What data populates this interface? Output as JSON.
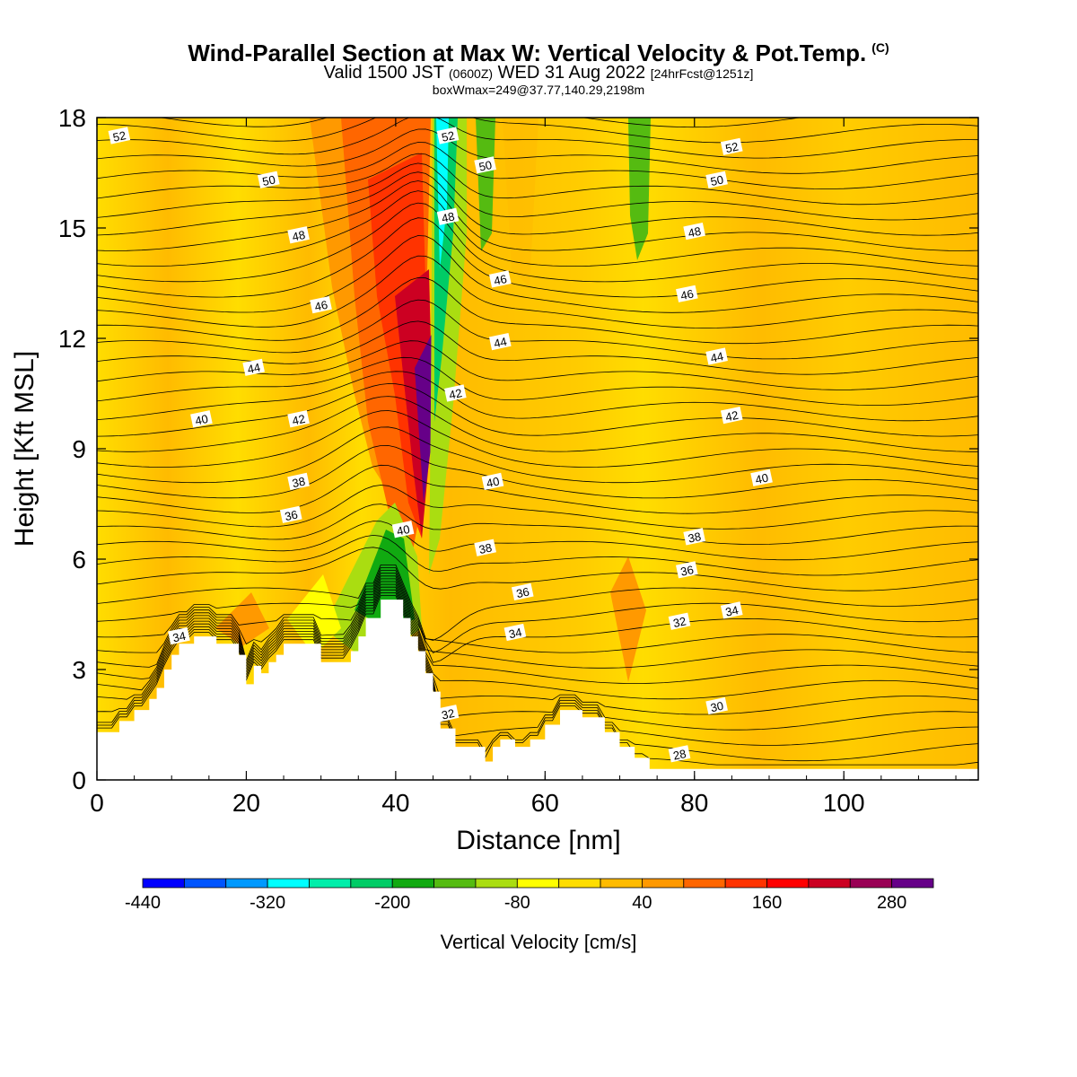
{
  "title": "Wind-Parallel Section at Max W: Vertical Velocity & Pot.Temp.",
  "copyright": "(C)",
  "valid_main": "Valid 1500 JST",
  "valid_z": "(0600Z)",
  "valid_date": "WED 31 Aug 2022",
  "forecast": "[24hrFcst@1251z]",
  "boxwmax": "boxWmax=249@37.77,140.29,2198m",
  "chart_data": {
    "type": "heatmap",
    "xlabel": "Distance [nm]",
    "ylabel": "Height [Kft MSL]",
    "xlim": [
      0,
      118
    ],
    "ylim": [
      0,
      18
    ],
    "x_ticks": [
      "0",
      "20",
      "40",
      "60",
      "80",
      "100"
    ],
    "y_ticks": [
      "0",
      "3",
      "6",
      "9",
      "12",
      "15",
      "18"
    ],
    "colorbar": {
      "label": "Vertical Velocity [cm/s]",
      "tick_labels": [
        "-440",
        "-320",
        "-200",
        "-80",
        "40",
        "160",
        "280"
      ],
      "colors": [
        "#0000ff",
        "#0055ff",
        "#0099ff",
        "#00ffff",
        "#00eeaa",
        "#00cc66",
        "#11aa11",
        "#55bb11",
        "#aadd11",
        "#ffff00",
        "#ffdd00",
        "#ffbb00",
        "#ff9900",
        "#ff6600",
        "#ff3300",
        "#ff0000",
        "#cc0022",
        "#990055",
        "#660088"
      ]
    },
    "terrain_profile": [
      {
        "x": 0,
        "h": 1.3
      },
      {
        "x": 3,
        "h": 1.3
      },
      {
        "x": 3,
        "h": 1.6
      },
      {
        "x": 5,
        "h": 1.6
      },
      {
        "x": 5,
        "h": 1.9
      },
      {
        "x": 7,
        "h": 1.9
      },
      {
        "x": 7,
        "h": 2.2
      },
      {
        "x": 8,
        "h": 2.2
      },
      {
        "x": 8,
        "h": 2.5
      },
      {
        "x": 9,
        "h": 2.5
      },
      {
        "x": 9,
        "h": 3.0
      },
      {
        "x": 10,
        "h": 3.0
      },
      {
        "x": 10,
        "h": 3.4
      },
      {
        "x": 11,
        "h": 3.4
      },
      {
        "x": 11,
        "h": 3.7
      },
      {
        "x": 13,
        "h": 3.7
      },
      {
        "x": 13,
        "h": 3.9
      },
      {
        "x": 16,
        "h": 3.9
      },
      {
        "x": 16,
        "h": 3.7
      },
      {
        "x": 19,
        "h": 3.7
      },
      {
        "x": 19,
        "h": 3.4
      },
      {
        "x": 20,
        "h": 3.4
      },
      {
        "x": 20,
        "h": 2.6
      },
      {
        "x": 21,
        "h": 2.6
      },
      {
        "x": 21,
        "h": 3.1
      },
      {
        "x": 22,
        "h": 3.1
      },
      {
        "x": 22,
        "h": 2.9
      },
      {
        "x": 23,
        "h": 2.9
      },
      {
        "x": 23,
        "h": 3.2
      },
      {
        "x": 24,
        "h": 3.2
      },
      {
        "x": 24,
        "h": 3.4
      },
      {
        "x": 25,
        "h": 3.4
      },
      {
        "x": 25,
        "h": 3.7
      },
      {
        "x": 30,
        "h": 3.7
      },
      {
        "x": 30,
        "h": 3.2
      },
      {
        "x": 34,
        "h": 3.2
      },
      {
        "x": 34,
        "h": 3.5
      },
      {
        "x": 35,
        "h": 3.5
      },
      {
        "x": 35,
        "h": 3.9
      },
      {
        "x": 36,
        "h": 3.9
      },
      {
        "x": 36,
        "h": 4.4
      },
      {
        "x": 38,
        "h": 4.4
      },
      {
        "x": 38,
        "h": 4.9
      },
      {
        "x": 41,
        "h": 4.9
      },
      {
        "x": 41,
        "h": 4.4
      },
      {
        "x": 42,
        "h": 4.4
      },
      {
        "x": 42,
        "h": 3.9
      },
      {
        "x": 43,
        "h": 3.9
      },
      {
        "x": 43,
        "h": 3.5
      },
      {
        "x": 44,
        "h": 3.5
      },
      {
        "x": 44,
        "h": 2.9
      },
      {
        "x": 45,
        "h": 2.9
      },
      {
        "x": 45,
        "h": 2.4
      },
      {
        "x": 46,
        "h": 2.4
      },
      {
        "x": 46,
        "h": 1.4
      },
      {
        "x": 48,
        "h": 1.4
      },
      {
        "x": 48,
        "h": 0.9
      },
      {
        "x": 52,
        "h": 0.9
      },
      {
        "x": 52,
        "h": 0.5
      },
      {
        "x": 53,
        "h": 0.5
      },
      {
        "x": 53,
        "h": 0.9
      },
      {
        "x": 54,
        "h": 0.9
      },
      {
        "x": 54,
        "h": 1.1
      },
      {
        "x": 56,
        "h": 1.1
      },
      {
        "x": 56,
        "h": 0.9
      },
      {
        "x": 58,
        "h": 0.9
      },
      {
        "x": 58,
        "h": 1.1
      },
      {
        "x": 60,
        "h": 1.1
      },
      {
        "x": 60,
        "h": 1.5
      },
      {
        "x": 62,
        "h": 1.5
      },
      {
        "x": 62,
        "h": 1.9
      },
      {
        "x": 65,
        "h": 1.9
      },
      {
        "x": 65,
        "h": 1.7
      },
      {
        "x": 68,
        "h": 1.7
      },
      {
        "x": 68,
        "h": 1.3
      },
      {
        "x": 70,
        "h": 1.3
      },
      {
        "x": 70,
        "h": 0.9
      },
      {
        "x": 72,
        "h": 0.9
      },
      {
        "x": 72,
        "h": 0.6
      },
      {
        "x": 74,
        "h": 0.6
      },
      {
        "x": 74,
        "h": 0.3
      },
      {
        "x": 118,
        "h": 0.3
      }
    ],
    "theta_contour_labels": [
      {
        "text": "52",
        "x": 3,
        "y": 17.5
      },
      {
        "text": "52",
        "x": 47,
        "y": 17.5
      },
      {
        "text": "52",
        "x": 85,
        "y": 17.2
      },
      {
        "text": "50",
        "x": 23,
        "y": 16.3
      },
      {
        "text": "50",
        "x": 52,
        "y": 16.7
      },
      {
        "text": "50",
        "x": 83,
        "y": 16.3
      },
      {
        "text": "48",
        "x": 27,
        "y": 14.8
      },
      {
        "text": "48",
        "x": 47,
        "y": 15.3
      },
      {
        "text": "48",
        "x": 80,
        "y": 14.9
      },
      {
        "text": "46",
        "x": 30,
        "y": 12.9
      },
      {
        "text": "46",
        "x": 54,
        "y": 13.6
      },
      {
        "text": "46",
        "x": 79,
        "y": 13.2
      },
      {
        "text": "44",
        "x": 21,
        "y": 11.2
      },
      {
        "text": "44",
        "x": 54,
        "y": 11.9
      },
      {
        "text": "44",
        "x": 83,
        "y": 11.5
      },
      {
        "text": "42",
        "x": 27,
        "y": 9.8
      },
      {
        "text": "42",
        "x": 48,
        "y": 10.5
      },
      {
        "text": "42",
        "x": 85,
        "y": 9.9
      },
      {
        "text": "40",
        "x": 14,
        "y": 9.8
      },
      {
        "text": "40",
        "x": 53,
        "y": 8.1
      },
      {
        "text": "40",
        "x": 89,
        "y": 8.2
      },
      {
        "text": "40",
        "x": 41,
        "y": 6.8
      },
      {
        "text": "38",
        "x": 27,
        "y": 8.1
      },
      {
        "text": "38",
        "x": 52,
        "y": 6.3
      },
      {
        "text": "38",
        "x": 80,
        "y": 6.6
      },
      {
        "text": "36",
        "x": 26,
        "y": 7.2
      },
      {
        "text": "36",
        "x": 57,
        "y": 5.1
      },
      {
        "text": "36",
        "x": 79,
        "y": 5.7
      },
      {
        "text": "34",
        "x": 11,
        "y": 3.9
      },
      {
        "text": "34",
        "x": 56,
        "y": 4.0
      },
      {
        "text": "34",
        "x": 85,
        "y": 4.6
      },
      {
        "text": "32",
        "x": 47,
        "y": 1.8
      },
      {
        "text": "32",
        "x": 78,
        "y": 4.3
      },
      {
        "text": "30",
        "x": 83,
        "y": 2.0
      },
      {
        "text": "28",
        "x": 78,
        "y": 0.7
      }
    ]
  }
}
